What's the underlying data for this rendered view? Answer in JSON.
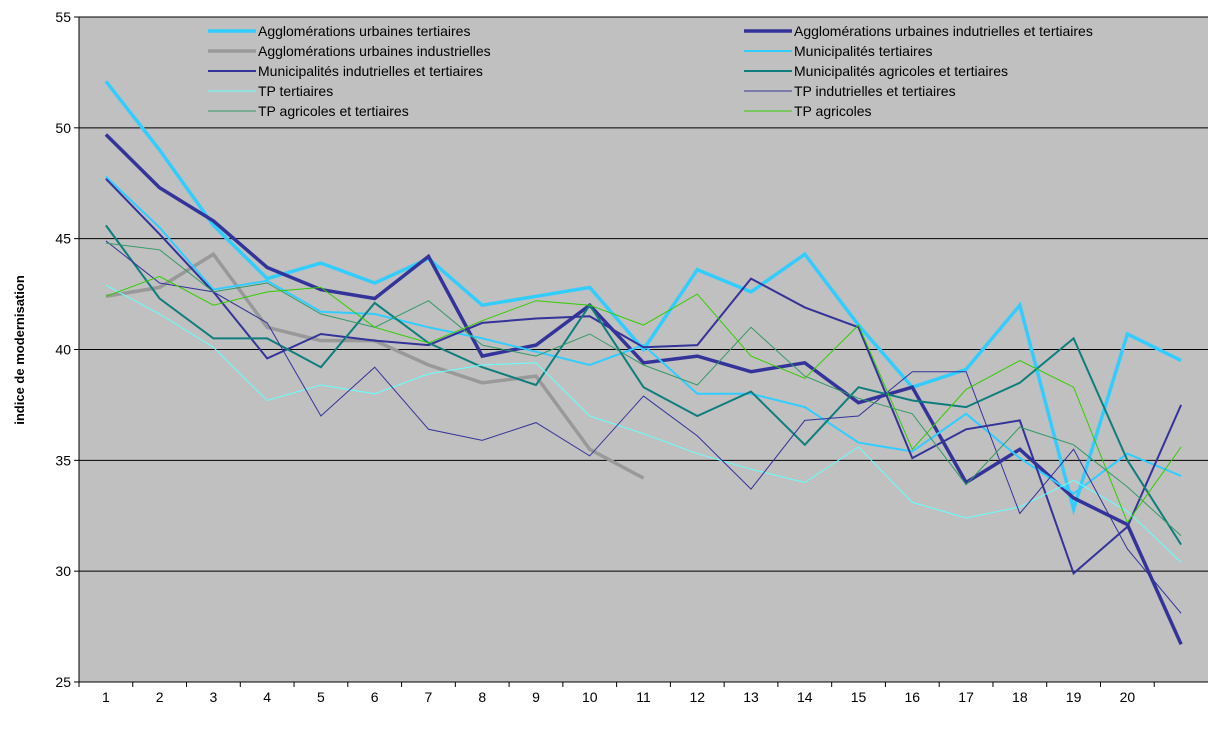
{
  "chart_data": {
    "type": "line",
    "ylabel": "indice de modernisation",
    "ylim": [
      25,
      55
    ],
    "yticks": [
      25,
      30,
      35,
      40,
      45,
      50,
      55
    ],
    "grid": true,
    "legend_position": "top",
    "plot_background": "#c0c0c0",
    "categories": [
      "1",
      "2",
      "3",
      "4",
      "5",
      "6",
      "7",
      "8",
      "9",
      "10",
      "11",
      "12",
      "13",
      "14",
      "15",
      "16",
      "17",
      "18",
      "19",
      "20",
      ""
    ],
    "series": [
      {
        "name": "Agglomérations urbaines tertiaires",
        "color": "#33ccff",
        "width": 3.5,
        "values": [
          52.1,
          49.0,
          45.6,
          43.2,
          43.9,
          43.0,
          44.1,
          42.0,
          42.4,
          42.8,
          40.0,
          43.6,
          42.6,
          44.3,
          41.1,
          38.3,
          39.1,
          42.0,
          32.8,
          40.7,
          39.5
        ]
      },
      {
        "name": "Agglomérations urbaines indutrielles et tertiaires",
        "color": "#333399",
        "width": 3.5,
        "values": [
          49.7,
          47.3,
          45.8,
          43.7,
          42.7,
          42.3,
          44.2,
          39.7,
          40.2,
          42.0,
          39.4,
          39.7,
          39.0,
          39.4,
          37.6,
          38.3,
          34.0,
          35.5,
          33.3,
          32.1,
          26.7
        ]
      },
      {
        "name": "Agglomérations urbaines industrielles",
        "color": "#999999",
        "width": 3.5,
        "values": [
          42.4,
          42.8,
          44.3,
          41.0,
          40.4,
          40.4,
          39.3,
          38.5,
          38.8,
          35.5,
          34.2,
          null,
          null,
          null,
          null,
          null,
          null,
          null,
          null,
          null,
          null
        ]
      },
      {
        "name": "Municipalités tertiaires",
        "color": "#33ccff",
        "width": 2,
        "values": [
          47.8,
          45.5,
          42.7,
          43.1,
          41.7,
          41.6,
          41.0,
          40.5,
          39.9,
          39.3,
          40.2,
          38.0,
          38.0,
          37.4,
          35.8,
          35.4,
          37.1,
          35.1,
          33.5,
          35.3,
          34.3
        ]
      },
      {
        "name": "Municipalités indutrielles et tertiaires",
        "color": "#333399",
        "width": 2,
        "values": [
          47.7,
          45.2,
          42.6,
          39.6,
          40.7,
          40.4,
          40.2,
          41.2,
          41.4,
          41.5,
          40.1,
          40.2,
          43.2,
          41.9,
          41.0,
          35.1,
          36.4,
          36.8,
          29.9,
          32.0,
          37.5
        ]
      },
      {
        "name": "Municipalités agricoles et tertiaires",
        "color": "#107d7d",
        "width": 2,
        "values": [
          45.6,
          42.3,
          40.5,
          40.5,
          39.2,
          42.1,
          40.3,
          39.2,
          38.4,
          42.0,
          38.3,
          37.0,
          38.1,
          35.7,
          38.3,
          37.7,
          37.4,
          38.5,
          40.5,
          35.0,
          31.2
        ]
      },
      {
        "name": "TP tertiaires",
        "color": "#66ffff",
        "width": 1,
        "values": [
          42.9,
          41.6,
          40.1,
          37.7,
          38.4,
          38.0,
          38.9,
          39.3,
          39.4,
          37.0,
          36.2,
          35.3,
          34.6,
          34.0,
          35.6,
          33.1,
          32.4,
          32.9,
          34.1,
          32.7,
          30.4
        ]
      },
      {
        "name": "TP indutrielles et tertiaires",
        "color": "#333399",
        "width": 1,
        "values": [
          44.9,
          43.0,
          42.6,
          41.2,
          37.0,
          39.2,
          36.4,
          35.9,
          36.7,
          35.2,
          37.9,
          36.1,
          33.7,
          36.8,
          37.0,
          39.0,
          39.0,
          32.6,
          35.5,
          31.0,
          28.1
        ]
      },
      {
        "name": "TP agricoles et tertiaires",
        "color": "#339966",
        "width": 1,
        "values": [
          44.8,
          44.5,
          42.6,
          43.0,
          41.6,
          41.0,
          42.2,
          40.2,
          39.7,
          40.7,
          39.3,
          38.4,
          41.0,
          38.8,
          37.8,
          37.1,
          33.9,
          36.5,
          35.7,
          33.8,
          31.6
        ]
      },
      {
        "name": "TP agricoles",
        "color": "#33cc00",
        "width": 1,
        "values": [
          42.4,
          43.3,
          42.0,
          42.6,
          42.8,
          41.0,
          40.3,
          41.3,
          42.2,
          42.0,
          41.1,
          42.5,
          39.7,
          38.7,
          41.1,
          35.5,
          38.2,
          39.5,
          38.3,
          32.2,
          35.6
        ]
      }
    ]
  }
}
